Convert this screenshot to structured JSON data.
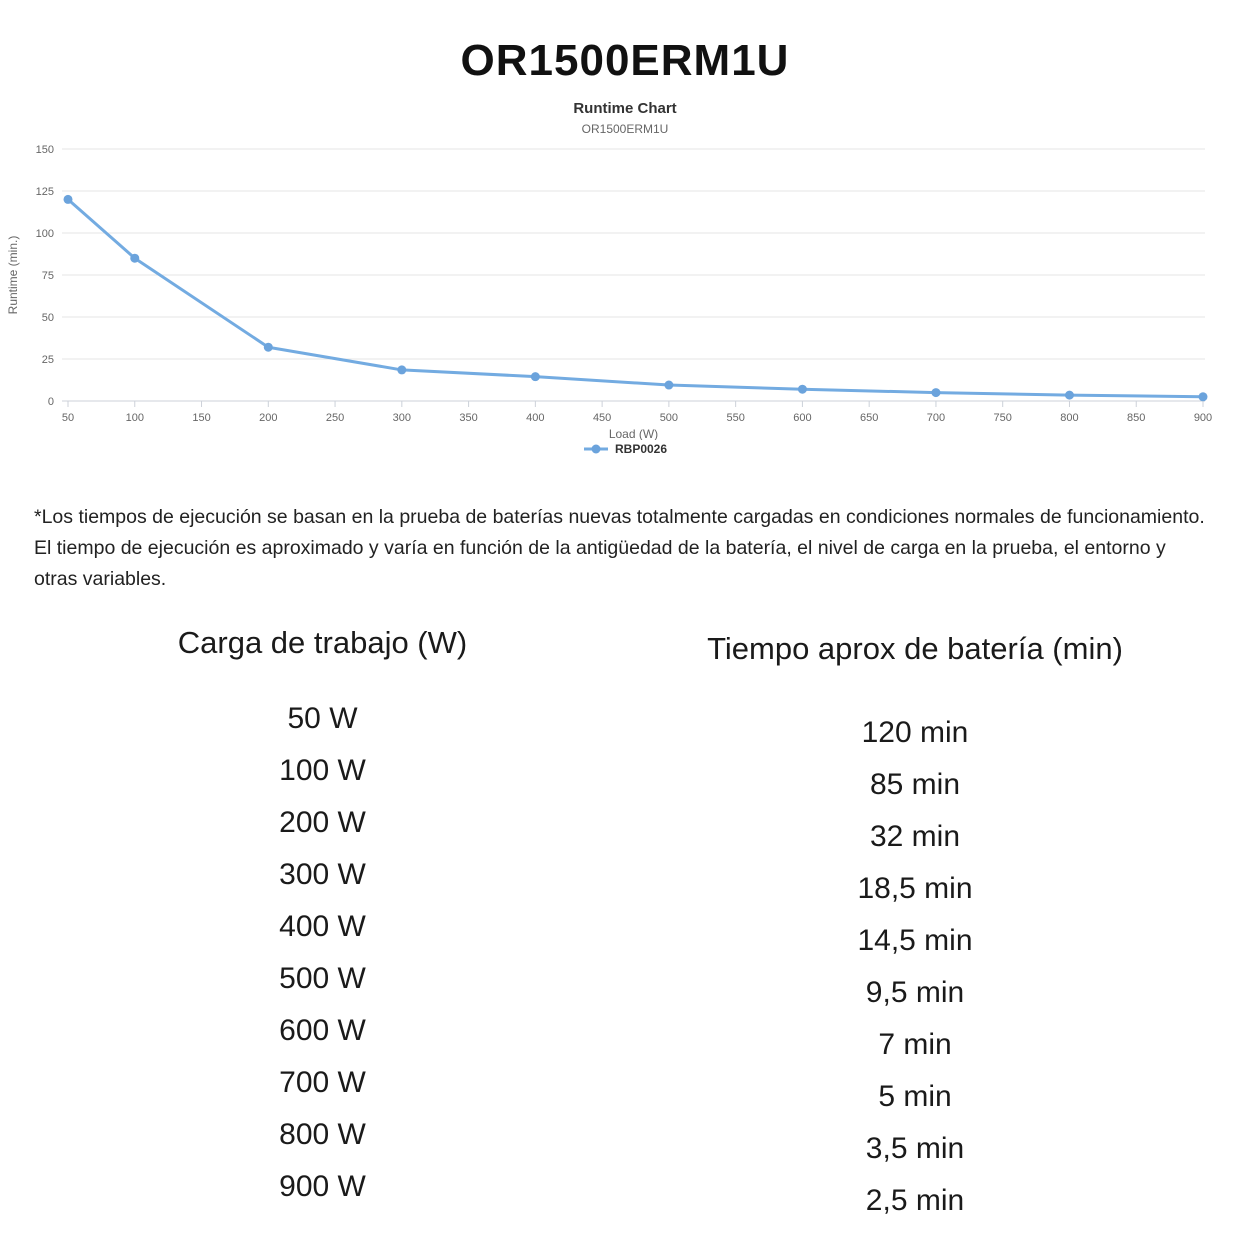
{
  "page": {
    "title": "OR1500ERM1U"
  },
  "chart": {
    "title": "Runtime Chart",
    "subtitle": "OR1500ERM1U",
    "legend_label": "RBP0026",
    "colors": {
      "line": "#73abe1",
      "marker": "#6ba3dc",
      "grid": "#e6e6e6",
      "axis_line": "#ccd1d9",
      "tick_text": "#666666",
      "axis_title": "#666666"
    }
  },
  "chart_data": {
    "type": "line",
    "title": "Runtime Chart",
    "subtitle": "OR1500ERM1U",
    "xlabel": "Load (W)",
    "ylabel": "Runtime (min.)",
    "x": [
      50,
      100,
      200,
      300,
      400,
      500,
      600,
      700,
      800,
      900
    ],
    "series": [
      {
        "name": "RBP0026",
        "values": [
          120,
          85,
          32,
          18.5,
          14.5,
          9.5,
          7,
          5,
          3.5,
          2.5
        ]
      }
    ],
    "xlim": [
      50,
      900
    ],
    "ylim": [
      0,
      150
    ],
    "x_ticks": [
      50,
      100,
      150,
      200,
      250,
      300,
      350,
      400,
      450,
      500,
      550,
      600,
      650,
      700,
      750,
      800,
      850,
      900
    ],
    "y_ticks": [
      0,
      25,
      50,
      75,
      100,
      125,
      150
    ],
    "grid": true,
    "legend_position": "bottom"
  },
  "note": "*Los tiempos de ejecución se basan en la prueba de baterías nuevas totalmente cargadas en condiciones normales de funcionamiento. El tiempo de ejecución es aproximado y varía en función de la antigüedad de la batería, el nivel de carga en la prueba, el entorno y otras variables.",
  "table": {
    "headers": [
      "Carga de trabajo (W)",
      "Tiempo aprox de batería (min)"
    ],
    "rows": [
      [
        "50 W",
        "120 min"
      ],
      [
        "100 W",
        "85 min"
      ],
      [
        "200 W",
        "32 min"
      ],
      [
        "300 W",
        "18,5 min"
      ],
      [
        "400 W",
        "14,5 min"
      ],
      [
        "500 W",
        "9,5 min"
      ],
      [
        "600 W",
        "7 min"
      ],
      [
        "700 W",
        "5 min"
      ],
      [
        "800 W",
        "3,5 min"
      ],
      [
        "900 W",
        "2,5 min"
      ]
    ]
  }
}
